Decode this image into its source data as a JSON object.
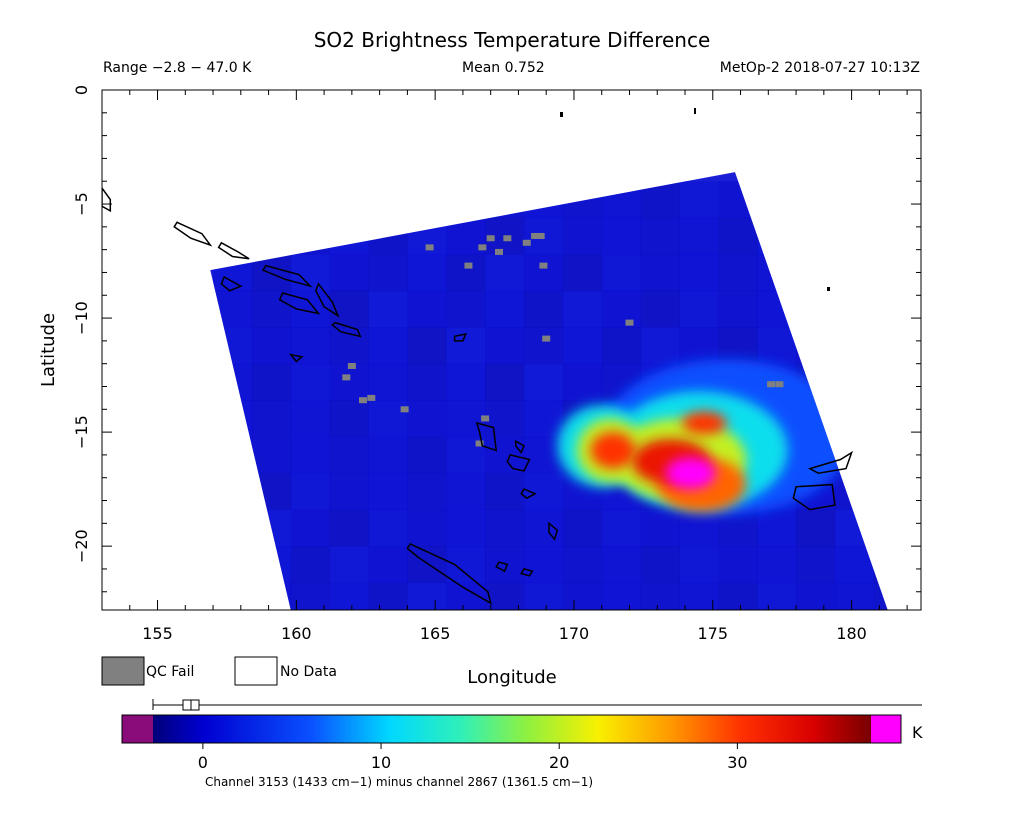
{
  "title": "SO2 Brightness Temperature Difference",
  "info": {
    "range": "Range −2.8 − 47.0 K",
    "mean": "Mean 0.752",
    "satellite": "MetOp-2 2018-07-27 10:13Z"
  },
  "axes": {
    "xlabel": "Longitude",
    "ylabel": "Latitude",
    "x_ticks": [
      "155",
      "160",
      "165",
      "170",
      "175",
      "180"
    ],
    "x_tick_values": [
      155,
      160,
      165,
      170,
      175,
      180
    ],
    "y_ticks": [
      "0",
      "−5",
      "−10",
      "−15",
      "−20"
    ],
    "y_tick_values": [
      0,
      -5,
      -10,
      -15,
      -20
    ],
    "xlim": [
      153,
      182.5
    ],
    "ylim": [
      -22.8,
      0
    ]
  },
  "legend": {
    "qc_fail": "QC Fail",
    "no_data": "No Data",
    "qc_color": "#808080"
  },
  "colorbar": {
    "unit": "K",
    "ticks": [
      "0",
      "10",
      "20",
      "30"
    ],
    "tick_values": [
      0,
      10,
      20,
      30
    ],
    "range": [
      -2.8,
      37.5
    ],
    "under_color": "#8a0b7a",
    "over_color": "#ff00ff",
    "caption": "Channel 3153 (1433 cm−1) minus channel 2867 (1361.5 cm−1)"
  },
  "swath": {
    "corners_lonlat": [
      [
        156.9,
        -7.9
      ],
      [
        175.8,
        -3.6
      ],
      [
        181.3,
        -22.8
      ],
      [
        159.8,
        -22.8
      ]
    ],
    "background_color": "#1a1fd6",
    "plume_center": [
      174.2,
      -16.8
    ]
  },
  "qc_pixels": [
    [
      164.8,
      -6.9
    ],
    [
      166.7,
      -6.9
    ],
    [
      167.3,
      -7.1
    ],
    [
      167.6,
      -6.5
    ],
    [
      167.0,
      -6.5
    ],
    [
      168.6,
      -6.4
    ],
    [
      168.8,
      -6.4
    ],
    [
      168.3,
      -6.7
    ],
    [
      166.2,
      -7.7
    ],
    [
      168.9,
      -7.7
    ],
    [
      172.0,
      -10.2
    ],
    [
      169.0,
      -10.9
    ],
    [
      162.0,
      -12.1
    ],
    [
      161.8,
      -12.6
    ],
    [
      162.4,
      -13.6
    ],
    [
      162.7,
      -13.5
    ],
    [
      163.9,
      -14.0
    ],
    [
      166.8,
      -14.4
    ],
    [
      166.6,
      -15.5
    ],
    [
      177.1,
      -12.9
    ],
    [
      177.4,
      -12.9
    ]
  ],
  "islands": [
    [
      [
        155.7,
        -5.8
      ],
      [
        156.6,
        -6.3
      ],
      [
        156.9,
        -6.8
      ],
      [
        156.2,
        -6.5
      ],
      [
        155.6,
        -6.0
      ]
    ],
    [
      [
        157.3,
        -6.7
      ],
      [
        157.9,
        -7.1
      ],
      [
        158.3,
        -7.4
      ],
      [
        157.7,
        -7.3
      ],
      [
        157.2,
        -6.9
      ]
    ],
    [
      [
        158.9,
        -7.7
      ],
      [
        160.1,
        -8.1
      ],
      [
        160.5,
        -8.6
      ],
      [
        159.6,
        -8.3
      ],
      [
        158.8,
        -7.9
      ]
    ],
    [
      [
        159.5,
        -8.9
      ],
      [
        160.4,
        -9.2
      ],
      [
        160.8,
        -9.8
      ],
      [
        160.0,
        -9.6
      ],
      [
        159.4,
        -9.2
      ]
    ],
    [
      [
        160.8,
        -8.5
      ],
      [
        161.3,
        -9.3
      ],
      [
        161.5,
        -9.9
      ],
      [
        161.0,
        -9.5
      ],
      [
        160.7,
        -8.8
      ]
    ],
    [
      [
        161.4,
        -10.2
      ],
      [
        162.2,
        -10.5
      ],
      [
        162.3,
        -10.8
      ],
      [
        161.6,
        -10.6
      ],
      [
        161.3,
        -10.3
      ]
    ],
    [
      [
        164.1,
        -19.9
      ],
      [
        165.7,
        -20.8
      ],
      [
        166.9,
        -22.0
      ],
      [
        167.0,
        -22.5
      ],
      [
        166.0,
        -21.8
      ],
      [
        164.4,
        -20.5
      ],
      [
        164.0,
        -20.1
      ]
    ],
    [
      [
        166.5,
        -14.6
      ],
      [
        167.1,
        -14.8
      ],
      [
        167.2,
        -15.8
      ],
      [
        166.7,
        -15.6
      ],
      [
        166.6,
        -15.0
      ]
    ],
    [
      [
        167.7,
        -16.0
      ],
      [
        168.4,
        -16.2
      ],
      [
        168.2,
        -16.7
      ],
      [
        167.8,
        -16.6
      ],
      [
        167.6,
        -16.3
      ]
    ],
    [
      [
        167.9,
        -15.4
      ],
      [
        168.2,
        -15.6
      ],
      [
        168.1,
        -15.9
      ],
      [
        167.9,
        -15.6
      ]
    ],
    [
      [
        168.2,
        -17.5
      ],
      [
        168.6,
        -17.7
      ],
      [
        168.3,
        -17.9
      ],
      [
        168.1,
        -17.7
      ]
    ],
    [
      [
        178.0,
        -17.4
      ],
      [
        179.3,
        -17.3
      ],
      [
        179.4,
        -18.2
      ],
      [
        178.5,
        -18.4
      ],
      [
        177.9,
        -17.9
      ]
    ],
    [
      [
        178.5,
        -16.6
      ],
      [
        179.6,
        -16.2
      ],
      [
        180.0,
        -15.9
      ],
      [
        179.8,
        -16.6
      ],
      [
        178.8,
        -16.8
      ]
    ],
    [
      [
        153.0,
        -4.3
      ],
      [
        153.3,
        -4.8
      ],
      [
        153.3,
        -5.3
      ],
      [
        153.0,
        -5.1
      ]
    ],
    [
      [
        169.1,
        -19.0
      ],
      [
        169.4,
        -19.3
      ],
      [
        169.3,
        -19.7
      ],
      [
        169.1,
        -19.4
      ]
    ],
    [
      [
        168.2,
        -21.0
      ],
      [
        168.5,
        -21.1
      ],
      [
        168.4,
        -21.3
      ],
      [
        168.1,
        -21.2
      ]
    ],
    [
      [
        167.3,
        -20.7
      ],
      [
        167.6,
        -20.8
      ],
      [
        167.5,
        -21.1
      ],
      [
        167.2,
        -20.9
      ]
    ],
    [
      [
        165.7,
        -10.8
      ],
      [
        166.1,
        -10.7
      ],
      [
        166.0,
        -11.0
      ],
      [
        165.7,
        -11.0
      ]
    ],
    [
      [
        159.8,
        -11.6
      ],
      [
        160.2,
        -11.7
      ],
      [
        160.0,
        -11.9
      ]
    ],
    [
      [
        157.4,
        -8.2
      ],
      [
        158.0,
        -8.6
      ],
      [
        157.6,
        -8.8
      ],
      [
        157.3,
        -8.5
      ]
    ]
  ],
  "plume_blobs": [
    {
      "lon": 174.2,
      "lat": -16.8,
      "rx": 0.9,
      "ry": 0.7,
      "value": 38
    },
    {
      "lon": 173.5,
      "lat": -16.3,
      "rx": 1.4,
      "ry": 1.0,
      "value": 32
    },
    {
      "lon": 174.6,
      "lat": -17.3,
      "rx": 1.6,
      "ry": 1.2,
      "value": 28
    },
    {
      "lon": 174.7,
      "lat": -14.6,
      "rx": 0.8,
      "ry": 0.5,
      "value": 30
    },
    {
      "lon": 171.4,
      "lat": -15.8,
      "rx": 0.8,
      "ry": 0.8,
      "value": 30
    },
    {
      "lon": 173.8,
      "lat": -16.2,
      "rx": 2.4,
      "ry": 1.8,
      "value": 20
    },
    {
      "lon": 171.3,
      "lat": -15.8,
      "rx": 1.2,
      "ry": 1.4,
      "value": 20
    },
    {
      "lon": 174.5,
      "lat": -15.8,
      "rx": 3.2,
      "ry": 2.6,
      "value": 11
    },
    {
      "lon": 171.0,
      "lat": -15.6,
      "rx": 1.6,
      "ry": 1.8,
      "value": 11
    },
    {
      "lon": 175.5,
      "lat": -15.2,
      "rx": 4.5,
      "ry": 3.4,
      "value": 5
    }
  ]
}
